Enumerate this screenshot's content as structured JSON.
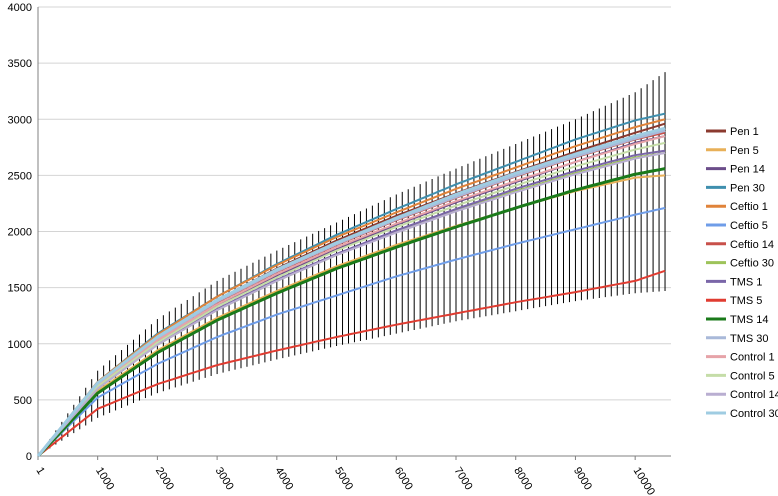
{
  "chart_data": {
    "type": "line",
    "title": "",
    "xlabel": "",
    "ylabel": "",
    "xlim": [
      1,
      10600
    ],
    "ylim": [
      0,
      4000
    ],
    "y_ticks": [
      0,
      500,
      1000,
      1500,
      2000,
      2500,
      3000,
      3500,
      4000
    ],
    "y_tick_labels": [
      "0",
      "500",
      "1000",
      "1500",
      "2000",
      "2500",
      "3000",
      "3500",
      "4000"
    ],
    "x_ticks": [
      1,
      1000,
      2000,
      3000,
      4000,
      5000,
      6000,
      7000,
      8000,
      9000,
      10000
    ],
    "x_tick_labels": [
      "1",
      "1000",
      "2000",
      "3000",
      "4000",
      "5000",
      "6000",
      "7000",
      "8000",
      "9000",
      "10000"
    ],
    "grid": "horizontal",
    "legend_position": "right",
    "error_bars": {
      "color": "#000000",
      "upper_x": [
        1000,
        2000,
        3000,
        4000,
        5000,
        6000,
        7000,
        8000,
        9000,
        10000,
        10500
      ],
      "upper_y": [
        760,
        1220,
        1560,
        1830,
        2080,
        2330,
        2560,
        2780,
        3000,
        3240,
        3420
      ],
      "lower_x": [
        1000,
        2000,
        3000,
        4000,
        5000,
        6000,
        7000,
        8000,
        9000,
        10000,
        10500
      ],
      "lower_y": [
        340,
        560,
        730,
        860,
        980,
        1090,
        1200,
        1290,
        1380,
        1450,
        1470
      ]
    },
    "series": [
      {
        "name": "Pen 1",
        "color": "#8b3a2f",
        "width": 2,
        "x": [
          1,
          1000,
          2000,
          3000,
          4000,
          5000,
          6000,
          7000,
          8000,
          9000,
          10000,
          10500
        ],
        "y": [
          0,
          640,
          1060,
          1390,
          1670,
          1920,
          2140,
          2340,
          2530,
          2710,
          2880,
          2960
        ]
      },
      {
        "name": "Pen 5",
        "color": "#e8b058",
        "width": 2,
        "x": [
          1,
          1000,
          2000,
          3000,
          4000,
          5000,
          6000,
          7000,
          8000,
          9000,
          10000,
          10500
        ],
        "y": [
          0,
          580,
          940,
          1230,
          1470,
          1690,
          1880,
          2050,
          2210,
          2360,
          2480,
          2500
        ]
      },
      {
        "name": "Pen 14",
        "color": "#6b4d8a",
        "width": 2,
        "x": [
          1,
          1000,
          2000,
          3000,
          4000,
          5000,
          6000,
          7000,
          8000,
          9000,
          10000,
          10500
        ],
        "y": [
          0,
          620,
          1020,
          1340,
          1610,
          1840,
          2060,
          2260,
          2440,
          2620,
          2790,
          2850
        ]
      },
      {
        "name": "Pen 30",
        "color": "#3f8fae",
        "width": 2,
        "x": [
          1,
          1000,
          2000,
          3000,
          4000,
          5000,
          6000,
          7000,
          8000,
          9000,
          10000,
          10500
        ],
        "y": [
          0,
          660,
          1090,
          1420,
          1710,
          1970,
          2200,
          2420,
          2620,
          2820,
          2990,
          3050
        ]
      },
      {
        "name": "Ceftio 1",
        "color": "#e0833a",
        "width": 2,
        "x": [
          1,
          1000,
          2000,
          3000,
          4000,
          5000,
          6000,
          7000,
          8000,
          9000,
          10000,
          10500
        ],
        "y": [
          0,
          660,
          1080,
          1420,
          1700,
          1950,
          2170,
          2380,
          2570,
          2760,
          2930,
          3000
        ]
      },
      {
        "name": "Ceftio 5",
        "color": "#6f9de8",
        "width": 2,
        "x": [
          1,
          1000,
          2000,
          3000,
          4000,
          5000,
          6000,
          7000,
          8000,
          9000,
          10000,
          10500
        ],
        "y": [
          0,
          520,
          820,
          1060,
          1260,
          1430,
          1600,
          1750,
          1890,
          2020,
          2150,
          2210
        ]
      },
      {
        "name": "Ceftio 14",
        "color": "#c8504a",
        "width": 2,
        "x": [
          1,
          1000,
          2000,
          3000,
          4000,
          5000,
          6000,
          7000,
          8000,
          9000,
          10000,
          10500
        ],
        "y": [
          0,
          640,
          1050,
          1370,
          1640,
          1880,
          2100,
          2300,
          2490,
          2660,
          2820,
          2880
        ]
      },
      {
        "name": "Ceftio 30",
        "color": "#9dc35a",
        "width": 2,
        "x": [
          1,
          1000,
          2000,
          3000,
          4000,
          5000,
          6000,
          7000,
          8000,
          9000,
          10000,
          10500
        ],
        "y": [
          0,
          600,
          990,
          1300,
          1560,
          1790,
          2000,
          2190,
          2360,
          2520,
          2660,
          2700
        ]
      },
      {
        "name": "TMS 1",
        "color": "#7a66a8",
        "width": 2,
        "x": [
          1,
          1000,
          2000,
          3000,
          4000,
          5000,
          6000,
          7000,
          8000,
          9000,
          10000,
          10500
        ],
        "y": [
          0,
          610,
          1000,
          1310,
          1570,
          1800,
          2010,
          2200,
          2380,
          2540,
          2680,
          2720
        ]
      },
      {
        "name": "TMS 5",
        "color": "#e03c31",
        "width": 2,
        "x": [
          1,
          1000,
          2000,
          3000,
          4000,
          5000,
          6000,
          7000,
          8000,
          9000,
          10000,
          10500
        ],
        "y": [
          0,
          420,
          640,
          810,
          940,
          1060,
          1170,
          1270,
          1370,
          1460,
          1560,
          1650
        ]
      },
      {
        "name": "TMS 14",
        "color": "#1a7a1a",
        "width": 3,
        "x": [
          1,
          1000,
          2000,
          3000,
          4000,
          5000,
          6000,
          7000,
          8000,
          9000,
          10000,
          10500
        ],
        "y": [
          0,
          560,
          920,
          1210,
          1450,
          1670,
          1860,
          2040,
          2210,
          2370,
          2510,
          2560
        ]
      },
      {
        "name": "TMS 30",
        "color": "#a9b9d9",
        "width": 3,
        "x": [
          1,
          1000,
          2000,
          3000,
          4000,
          5000,
          6000,
          7000,
          8000,
          9000,
          10000,
          10500
        ],
        "y": [
          0,
          640,
          1050,
          1380,
          1650,
          1890,
          2110,
          2310,
          2500,
          2670,
          2830,
          2900
        ]
      },
      {
        "name": "Control 1",
        "color": "#e6a3a8",
        "width": 2,
        "x": [
          1,
          1000,
          2000,
          3000,
          4000,
          5000,
          6000,
          7000,
          8000,
          9000,
          10000,
          10500
        ],
        "y": [
          0,
          630,
          1030,
          1350,
          1620,
          1860,
          2070,
          2270,
          2450,
          2620,
          2780,
          2850
        ]
      },
      {
        "name": "Control 5",
        "color": "#c5dda8",
        "width": 2,
        "x": [
          1,
          1000,
          2000,
          3000,
          4000,
          5000,
          6000,
          7000,
          8000,
          9000,
          10000,
          10500
        ],
        "y": [
          0,
          620,
          1010,
          1330,
          1590,
          1830,
          2040,
          2230,
          2410,
          2580,
          2730,
          2790
        ]
      },
      {
        "name": "Control 14",
        "color": "#b9aed1",
        "width": 2,
        "x": [
          1,
          1000,
          2000,
          3000,
          4000,
          5000,
          6000,
          7000,
          8000,
          9000,
          10000,
          10500
        ],
        "y": [
          0,
          600,
          990,
          1300,
          1560,
          1790,
          1990,
          2180,
          2350,
          2510,
          2650,
          2700
        ]
      },
      {
        "name": "Control 30",
        "color": "#9fcce2",
        "width": 3,
        "x": [
          1,
          1000,
          2000,
          3000,
          4000,
          5000,
          6000,
          7000,
          8000,
          9000,
          10000,
          10500
        ],
        "y": [
          0,
          650,
          1060,
          1390,
          1660,
          1900,
          2120,
          2330,
          2520,
          2690,
          2850,
          2920
        ]
      }
    ]
  }
}
